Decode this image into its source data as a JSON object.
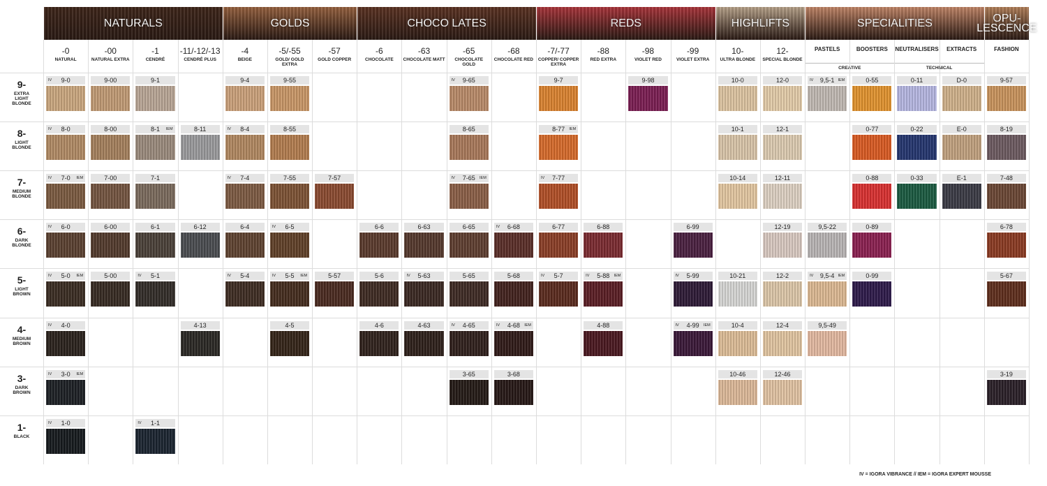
{
  "groups": [
    {
      "label": "NATURALS",
      "color": "#3e2519",
      "columns": [
        {
          "code": "-0",
          "name": "NATURAL"
        },
        {
          "code": "-00",
          "name": "NATURAL EXTRA"
        },
        {
          "code": "-1",
          "name": "CENDRÉ"
        },
        {
          "code": "-11/-12/-13",
          "name": "CENDRÉ PLUS"
        }
      ]
    },
    {
      "label": "GOLDS",
      "color": "#95603e",
      "columns": [
        {
          "code": "-4",
          "name": "BEIGE"
        },
        {
          "code": "-5/-55",
          "name": "GOLD/ GOLD EXTRA"
        },
        {
          "code": "-57",
          "name": "GOLD COPPER"
        }
      ]
    },
    {
      "label": "CHOCO LATES",
      "color": "#5b3222",
      "columns": [
        {
          "code": "-6",
          "name": "CHOCOLATE"
        },
        {
          "code": "-63",
          "name": "CHOCOLATE MATT"
        },
        {
          "code": "-65",
          "name": "CHOCOLATE GOLD"
        },
        {
          "code": "-68",
          "name": "CHOCOLATE RED"
        }
      ]
    },
    {
      "label": "REDS",
      "color": "#a9343a",
      "columns": [
        {
          "code": "-7/-77",
          "name": "COPPER/ COPPER EXTRA"
        },
        {
          "code": "-88",
          "name": "RED EXTRA"
        },
        {
          "code": "-98",
          "name": "VIOLET RED"
        },
        {
          "code": "-99",
          "name": "VIOLET EXTRA"
        }
      ]
    },
    {
      "label": "HIGHLIFTS",
      "color": "#b5a088",
      "columns": [
        {
          "code": "10-",
          "name": "ULTRA BLONDE"
        },
        {
          "code": "12-",
          "name": "SPECIAL BLONDE"
        }
      ]
    },
    {
      "label": "SPECIALITIES",
      "color": "#c08466",
      "subgroups": [
        {
          "label": "CREATIVE",
          "columns": [
            {
              "name": "PASTELS"
            },
            {
              "name": "BOOSTERS"
            }
          ]
        },
        {
          "label": "TECHNICAL",
          "columns": [
            {
              "name": "NEUTRALISERS"
            },
            {
              "name": "EXTRACTS"
            }
          ]
        }
      ]
    },
    {
      "label": "OPU-\nLESCENCE",
      "color": "#b07e58",
      "columns": [
        {
          "name": "FASHION"
        }
      ]
    }
  ],
  "rows": [
    {
      "level": "9-",
      "name": "EXTRA LIGHT BLONDE",
      "cells": [
        {
          "code": "9-0",
          "color": "#c9a67e",
          "marks": [
            "IV"
          ]
        },
        {
          "code": "9-00",
          "color": "#c09a74"
        },
        {
          "code": "9-1",
          "color": "#b8a595"
        },
        null,
        {
          "code": "9-4",
          "color": "#caa07a"
        },
        {
          "code": "9-55",
          "color": "#c89666"
        },
        null,
        null,
        null,
        {
          "code": "9-65",
          "color": "#b88a68",
          "marks": [
            "IV"
          ]
        },
        null,
        {
          "code": "9-7",
          "color": "#d9822f"
        },
        null,
        {
          "code": "9-98",
          "color": "#7a1e52"
        },
        null,
        {
          "code": "10-0",
          "color": "#dcc3a0"
        },
        {
          "code": "12-0",
          "color": "#e2cba8"
        },
        {
          "code": "9,5-1",
          "color": "#c0b8b2",
          "marks": [
            "IV",
            "IEM"
          ]
        },
        {
          "code": "0-55",
          "color": "#e0922e"
        },
        {
          "code": "0-11",
          "color": "#b5b6e0"
        },
        {
          "code": "D-0",
          "color": "#cfb08a"
        },
        {
          "code": "9-57",
          "color": "#c8935c"
        }
      ]
    },
    {
      "level": "8-",
      "name": "LIGHT BLONDE",
      "cells": [
        {
          "code": "8-0",
          "color": "#b08a64",
          "marks": [
            "IV"
          ]
        },
        {
          "code": "8-00",
          "color": "#a47f5c"
        },
        {
          "code": "8-1",
          "color": "#9a8a7c",
          "marks": [
            "IEM"
          ]
        },
        {
          "code": "8-11",
          "color": "#9a9a9c"
        },
        {
          "code": "8-4",
          "color": "#b08760",
          "marks": [
            "IV"
          ]
        },
        {
          "code": "8-55",
          "color": "#b27c4e"
        },
        null,
        null,
        null,
        {
          "code": "8-65",
          "color": "#a8785a"
        },
        null,
        {
          "code": "8-77",
          "color": "#d56a2a",
          "marks": [
            "IEM"
          ]
        },
        null,
        null,
        null,
        {
          "code": "10-1",
          "color": "#d8c4a8"
        },
        {
          "code": "12-1",
          "color": "#dccab0"
        },
        null,
        {
          "code": "0-77",
          "color": "#d85a22"
        },
        {
          "code": "0-22",
          "color": "#24356e"
        },
        {
          "code": "E-0",
          "color": "#c0a07e"
        },
        {
          "code": "8-19",
          "color": "#6c5a60"
        }
      ]
    },
    {
      "level": "7-",
      "name": "MEDIUM BLONDE",
      "cells": [
        {
          "code": "7-0",
          "color": "#7a5a40",
          "marks": [
            "IV",
            "IEM"
          ]
        },
        {
          "code": "7-00",
          "color": "#735440"
        },
        {
          "code": "7-1",
          "color": "#7a6a5c"
        },
        null,
        {
          "code": "7-4",
          "color": "#7c5a42",
          "marks": [
            "IV"
          ]
        },
        {
          "code": "7-55",
          "color": "#7c5234"
        },
        {
          "code": "7-57",
          "color": "#8a4a30"
        },
        null,
        null,
        {
          "code": "7-65",
          "color": "#8a5e46",
          "marks": [
            "IV",
            "IEM"
          ]
        },
        null,
        {
          "code": "7-77",
          "color": "#b04e26",
          "marks": [
            "IV"
          ]
        },
        null,
        null,
        null,
        {
          "code": "10-14",
          "color": "#e2c6a0"
        },
        {
          "code": "12-11",
          "color": "#ddd0c2"
        },
        null,
        {
          "code": "0-88",
          "color": "#d83030"
        },
        {
          "code": "0-33",
          "color": "#1a5a40"
        },
        {
          "code": "E-1",
          "color": "#3a3a44"
        },
        {
          "code": "7-48",
          "color": "#6a4634"
        }
      ]
    },
    {
      "level": "6-",
      "name": "DARK BLONDE",
      "cells": [
        {
          "code": "6-0",
          "color": "#5a4030",
          "marks": [
            "IV"
          ]
        },
        {
          "code": "6-00",
          "color": "#523a2c"
        },
        {
          "code": "6-1",
          "color": "#4a4038"
        },
        {
          "code": "6-12",
          "color": "#4a4c50"
        },
        {
          "code": "6-4",
          "color": "#5e4230"
        },
        {
          "code": "6-5",
          "color": "#604028",
          "marks": [
            "IV"
          ]
        },
        null,
        {
          "code": "6-6",
          "color": "#5a3a2c"
        },
        {
          "code": "6-63",
          "color": "#54382c"
        },
        {
          "code": "6-65",
          "color": "#5e3e30"
        },
        {
          "code": "6-68",
          "color": "#5a2e28",
          "marks": [
            "IV"
          ]
        },
        {
          "code": "6-77",
          "color": "#8a3e26"
        },
        {
          "code": "6-88",
          "color": "#7a2a30"
        },
        null,
        {
          "code": "6-99",
          "color": "#4a2040"
        },
        null,
        {
          "code": "12-19",
          "color": "#d8c8c0"
        },
        {
          "code": "9,5-22",
          "color": "#b8b4b4"
        },
        {
          "code": "0-89",
          "color": "#8a2050"
        },
        null,
        null,
        {
          "code": "6-78",
          "color": "#8a3a22"
        }
      ]
    },
    {
      "level": "5-",
      "name": "LIGHT BROWN",
      "cells": [
        {
          "code": "5-0",
          "color": "#3a2c22",
          "marks": [
            "IV",
            "IEM"
          ]
        },
        {
          "code": "5-00",
          "color": "#362a22"
        },
        {
          "code": "5-1",
          "color": "#322c28",
          "marks": [
            "IV"
          ]
        },
        null,
        {
          "code": "5-4",
          "color": "#3e2c22",
          "marks": [
            "IV"
          ]
        },
        {
          "code": "5-5",
          "color": "#442c1e",
          "marks": [
            "IV",
            "IEM"
          ]
        },
        {
          "code": "5-57",
          "color": "#4a2a20"
        },
        {
          "code": "5-6",
          "color": "#3e2a22"
        },
        {
          "code": "5-63",
          "color": "#3a2822",
          "marks": [
            "IV"
          ]
        },
        {
          "code": "5-65",
          "color": "#3e2a24"
        },
        {
          "code": "5-68",
          "color": "#42221e"
        },
        {
          "code": "5-7",
          "color": "#5a2a1e",
          "marks": [
            "IV"
          ]
        },
        {
          "code": "5-88",
          "color": "#5a1e24",
          "marks": [
            "IV",
            "IEM"
          ]
        },
        null,
        {
          "code": "5-99",
          "color": "#2e1a36",
          "marks": [
            "IV"
          ]
        },
        {
          "code": "10-21",
          "color": "#d6d6d4"
        },
        {
          "code": "12-2",
          "color": "#dcc6a8"
        },
        {
          "code": "9,5-4",
          "color": "#dcb892",
          "marks": [
            "IV",
            "IEM"
          ]
        },
        {
          "code": "0-99",
          "color": "#2e1a4a"
        },
        null,
        null,
        {
          "code": "5-67",
          "color": "#5e2e1c"
        }
      ]
    },
    {
      "level": "4-",
      "name": "MEDIUM BROWN",
      "cells": [
        {
          "code": "4-0",
          "color": "#2a221c",
          "marks": [
            "IV"
          ]
        },
        null,
        null,
        {
          "code": "4-13",
          "color": "#2a2824"
        },
        null,
        {
          "code": "4-5",
          "color": "#342418"
        },
        null,
        {
          "code": "4-6",
          "color": "#30221c"
        },
        {
          "code": "4-63",
          "color": "#2e201a"
        },
        {
          "code": "4-65",
          "color": "#30201c",
          "marks": [
            "IV"
          ]
        },
        {
          "code": "4-68",
          "color": "#301a18",
          "marks": [
            "IV",
            "IEM"
          ]
        },
        null,
        {
          "code": "4-88",
          "color": "#4a1820"
        },
        null,
        {
          "code": "4-99",
          "color": "#3a1838",
          "marks": [
            "IV",
            "IEM"
          ]
        },
        {
          "code": "10-4",
          "color": "#dcbc96"
        },
        {
          "code": "12-4",
          "color": "#e0c4a0"
        },
        {
          "code": "9,5-49",
          "color": "#e2b8a0"
        },
        null,
        null,
        null,
        null
      ]
    },
    {
      "level": "3-",
      "name": "DARK BROWN",
      "cells": [
        {
          "code": "3-0",
          "color": "#1c2024",
          "marks": [
            "IV",
            "IEM"
          ]
        },
        null,
        null,
        null,
        null,
        null,
        null,
        null,
        null,
        {
          "code": "3-65",
          "color": "#241a16"
        },
        {
          "code": "3-68",
          "color": "#261816"
        },
        null,
        null,
        null,
        null,
        {
          "code": "10-46",
          "color": "#dcb898"
        },
        {
          "code": "12-46",
          "color": "#e0c2a2"
        },
        null,
        null,
        null,
        null,
        {
          "code": "3-19",
          "color": "#2a2028"
        }
      ]
    },
    {
      "level": "1-",
      "name": "BLACK",
      "cells": [
        {
          "code": "1-0",
          "color": "#161a1e",
          "marks": [
            "IV"
          ]
        },
        null,
        {
          "code": "1-1",
          "color": "#1a2430",
          "marks": [
            "IV"
          ]
        },
        null,
        null,
        null,
        null,
        null,
        null,
        null,
        null,
        null,
        null,
        null,
        null,
        null,
        null,
        null,
        null,
        null,
        null,
        null
      ]
    }
  ],
  "footer": "IV = IGORA VIBRANCE   //   IEM = IGORA EXPERT MOUSSE"
}
